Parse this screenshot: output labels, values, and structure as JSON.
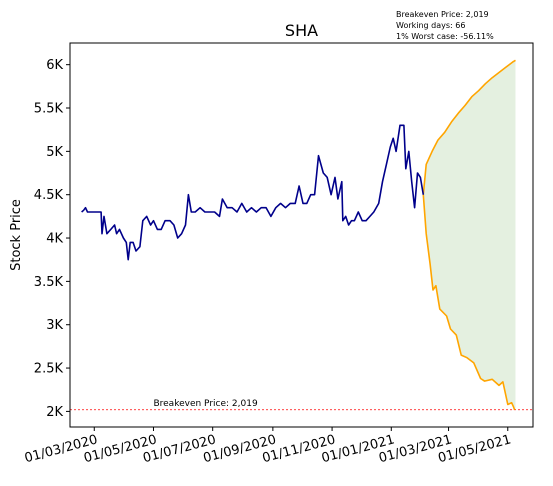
{
  "chart_data": {
    "type": "line",
    "title": "SHA",
    "ylabel": "Stock Price",
    "xlabel": "",
    "ylim": [
      1820,
      6250
    ],
    "xlim": [
      "2020-02-05",
      "2021-05-27"
    ],
    "grid": false,
    "y_ticks": [
      {
        "value": 2000,
        "label": "2K"
      },
      {
        "value": 2500,
        "label": "2.5K"
      },
      {
        "value": 3000,
        "label": "3K"
      },
      {
        "value": 3500,
        "label": "3.5K"
      },
      {
        "value": 4000,
        "label": "4K"
      },
      {
        "value": 4500,
        "label": "4.5K"
      },
      {
        "value": 5000,
        "label": "5K"
      },
      {
        "value": 5500,
        "label": "5.5K"
      },
      {
        "value": 6000,
        "label": "6K"
      }
    ],
    "x_ticks": [
      {
        "date": "2020-03-01",
        "label": "01/03/2020"
      },
      {
        "date": "2020-05-01",
        "label": "01/05/2020"
      },
      {
        "date": "2020-07-01",
        "label": "01/07/2020"
      },
      {
        "date": "2020-09-01",
        "label": "01/09/2020"
      },
      {
        "date": "2020-11-01",
        "label": "01/11/2020"
      },
      {
        "date": "2021-01-01",
        "label": "01/01/2021"
      },
      {
        "date": "2021-03-01",
        "label": "01/03/2021"
      },
      {
        "date": "2021-05-01",
        "label": "01/05/2021"
      }
    ],
    "annotations": {
      "info_lines": [
        "Breakeven Price: 2,019",
        "Working days: 66",
        "1% Worst case: -56.11%"
      ],
      "breakeven_label": "Breakeven Price: 2,019",
      "breakeven_value": 2019
    },
    "colors": {
      "history": "#00008b",
      "projection": "#ffa500",
      "band_fill": "#e4f0e0",
      "breakeven": "#ff0000"
    },
    "history": [
      [
        "2020-02-17",
        4300
      ],
      [
        "2020-02-19",
        4320
      ],
      [
        "2020-02-21",
        4350
      ],
      [
        "2020-02-23",
        4300
      ],
      [
        "2020-03-01",
        4300
      ],
      [
        "2020-03-08",
        4300
      ],
      [
        "2020-03-09",
        4050
      ],
      [
        "2020-03-11",
        4250
      ],
      [
        "2020-03-14",
        4050
      ],
      [
        "2020-03-18",
        4100
      ],
      [
        "2020-03-22",
        4150
      ],
      [
        "2020-03-24",
        4050
      ],
      [
        "2020-03-27",
        4100
      ],
      [
        "2020-03-31",
        4000
      ],
      [
        "2020-04-03",
        3950
      ],
      [
        "2020-04-05",
        3750
      ],
      [
        "2020-04-07",
        3950
      ],
      [
        "2020-04-10",
        3950
      ],
      [
        "2020-04-13",
        3850
      ],
      [
        "2020-04-17",
        3900
      ],
      [
        "2020-04-20",
        4200
      ],
      [
        "2020-04-24",
        4250
      ],
      [
        "2020-04-28",
        4150
      ],
      [
        "2020-05-01",
        4200
      ],
      [
        "2020-05-05",
        4100
      ],
      [
        "2020-05-09",
        4100
      ],
      [
        "2020-05-13",
        4200
      ],
      [
        "2020-05-18",
        4200
      ],
      [
        "2020-05-22",
        4150
      ],
      [
        "2020-05-26",
        4000
      ],
      [
        "2020-05-30",
        4050
      ],
      [
        "2020-06-03",
        4150
      ],
      [
        "2020-06-06",
        4500
      ],
      [
        "2020-06-09",
        4300
      ],
      [
        "2020-06-13",
        4300
      ],
      [
        "2020-06-18",
        4350
      ],
      [
        "2020-06-23",
        4300
      ],
      [
        "2020-06-28",
        4300
      ],
      [
        "2020-07-03",
        4300
      ],
      [
        "2020-07-08",
        4250
      ],
      [
        "2020-07-11",
        4450
      ],
      [
        "2020-07-16",
        4350
      ],
      [
        "2020-07-21",
        4350
      ],
      [
        "2020-07-26",
        4300
      ],
      [
        "2020-07-31",
        4400
      ],
      [
        "2020-08-05",
        4300
      ],
      [
        "2020-08-10",
        4350
      ],
      [
        "2020-08-15",
        4300
      ],
      [
        "2020-08-20",
        4350
      ],
      [
        "2020-08-25",
        4350
      ],
      [
        "2020-08-30",
        4250
      ],
      [
        "2020-09-04",
        4350
      ],
      [
        "2020-09-09",
        4400
      ],
      [
        "2020-09-14",
        4350
      ],
      [
        "2020-09-19",
        4400
      ],
      [
        "2020-09-24",
        4400
      ],
      [
        "2020-09-28",
        4600
      ],
      [
        "2020-10-02",
        4400
      ],
      [
        "2020-10-06",
        4400
      ],
      [
        "2020-10-10",
        4500
      ],
      [
        "2020-10-14",
        4500
      ],
      [
        "2020-10-18",
        4950
      ],
      [
        "2020-10-23",
        4750
      ],
      [
        "2020-10-27",
        4700
      ],
      [
        "2020-10-31",
        4500
      ],
      [
        "2020-11-04",
        4700
      ],
      [
        "2020-11-07",
        4450
      ],
      [
        "2020-11-11",
        4650
      ],
      [
        "2020-11-12",
        4200
      ],
      [
        "2020-11-15",
        4250
      ],
      [
        "2020-11-18",
        4150
      ],
      [
        "2020-11-21",
        4200
      ],
      [
        "2020-11-24",
        4200
      ],
      [
        "2020-11-28",
        4300
      ],
      [
        "2020-12-02",
        4200
      ],
      [
        "2020-12-06",
        4200
      ],
      [
        "2020-12-10",
        4250
      ],
      [
        "2020-12-14",
        4300
      ],
      [
        "2020-12-19",
        4400
      ],
      [
        "2020-12-23",
        4650
      ],
      [
        "2020-12-27",
        4850
      ],
      [
        "2020-12-31",
        5050
      ],
      [
        "2021-01-03",
        5150
      ],
      [
        "2021-01-06",
        5000
      ],
      [
        "2021-01-10",
        5300
      ],
      [
        "2021-01-14",
        5300
      ],
      [
        "2021-01-16",
        4800
      ],
      [
        "2021-01-19",
        5000
      ],
      [
        "2021-01-22",
        4650
      ],
      [
        "2021-01-25",
        4350
      ],
      [
        "2021-01-28",
        4750
      ],
      [
        "2021-01-31",
        4700
      ],
      [
        "2021-02-03",
        4500
      ]
    ],
    "upper_bound": [
      [
        "2021-02-03",
        4500
      ],
      [
        "2021-02-06",
        4850
      ],
      [
        "2021-02-12",
        5000
      ],
      [
        "2021-02-18",
        5130
      ],
      [
        "2021-02-25",
        5220
      ],
      [
        "2021-03-04",
        5340
      ],
      [
        "2021-03-11",
        5440
      ],
      [
        "2021-03-18",
        5530
      ],
      [
        "2021-03-25",
        5630
      ],
      [
        "2021-04-01",
        5700
      ],
      [
        "2021-04-08",
        5780
      ],
      [
        "2021-04-15",
        5850
      ],
      [
        "2021-04-22",
        5910
      ],
      [
        "2021-04-29",
        5970
      ],
      [
        "2021-05-06",
        6030
      ],
      [
        "2021-05-09",
        6050
      ]
    ],
    "lower_bound": [
      [
        "2021-02-03",
        4500
      ],
      [
        "2021-02-06",
        4050
      ],
      [
        "2021-02-10",
        3700
      ],
      [
        "2021-02-13",
        3400
      ],
      [
        "2021-02-16",
        3450
      ],
      [
        "2021-02-20",
        3180
      ],
      [
        "2021-02-27",
        3100
      ],
      [
        "2021-03-03",
        2950
      ],
      [
        "2021-03-09",
        2880
      ],
      [
        "2021-03-14",
        2650
      ],
      [
        "2021-03-20",
        2620
      ],
      [
        "2021-03-27",
        2560
      ],
      [
        "2021-04-03",
        2380
      ],
      [
        "2021-04-07",
        2350
      ],
      [
        "2021-04-15",
        2370
      ],
      [
        "2021-04-22",
        2300
      ],
      [
        "2021-04-26",
        2340
      ],
      [
        "2021-05-01",
        2080
      ],
      [
        "2021-05-05",
        2100
      ],
      [
        "2021-05-07",
        2050
      ],
      [
        "2021-05-08",
        2019
      ]
    ]
  }
}
